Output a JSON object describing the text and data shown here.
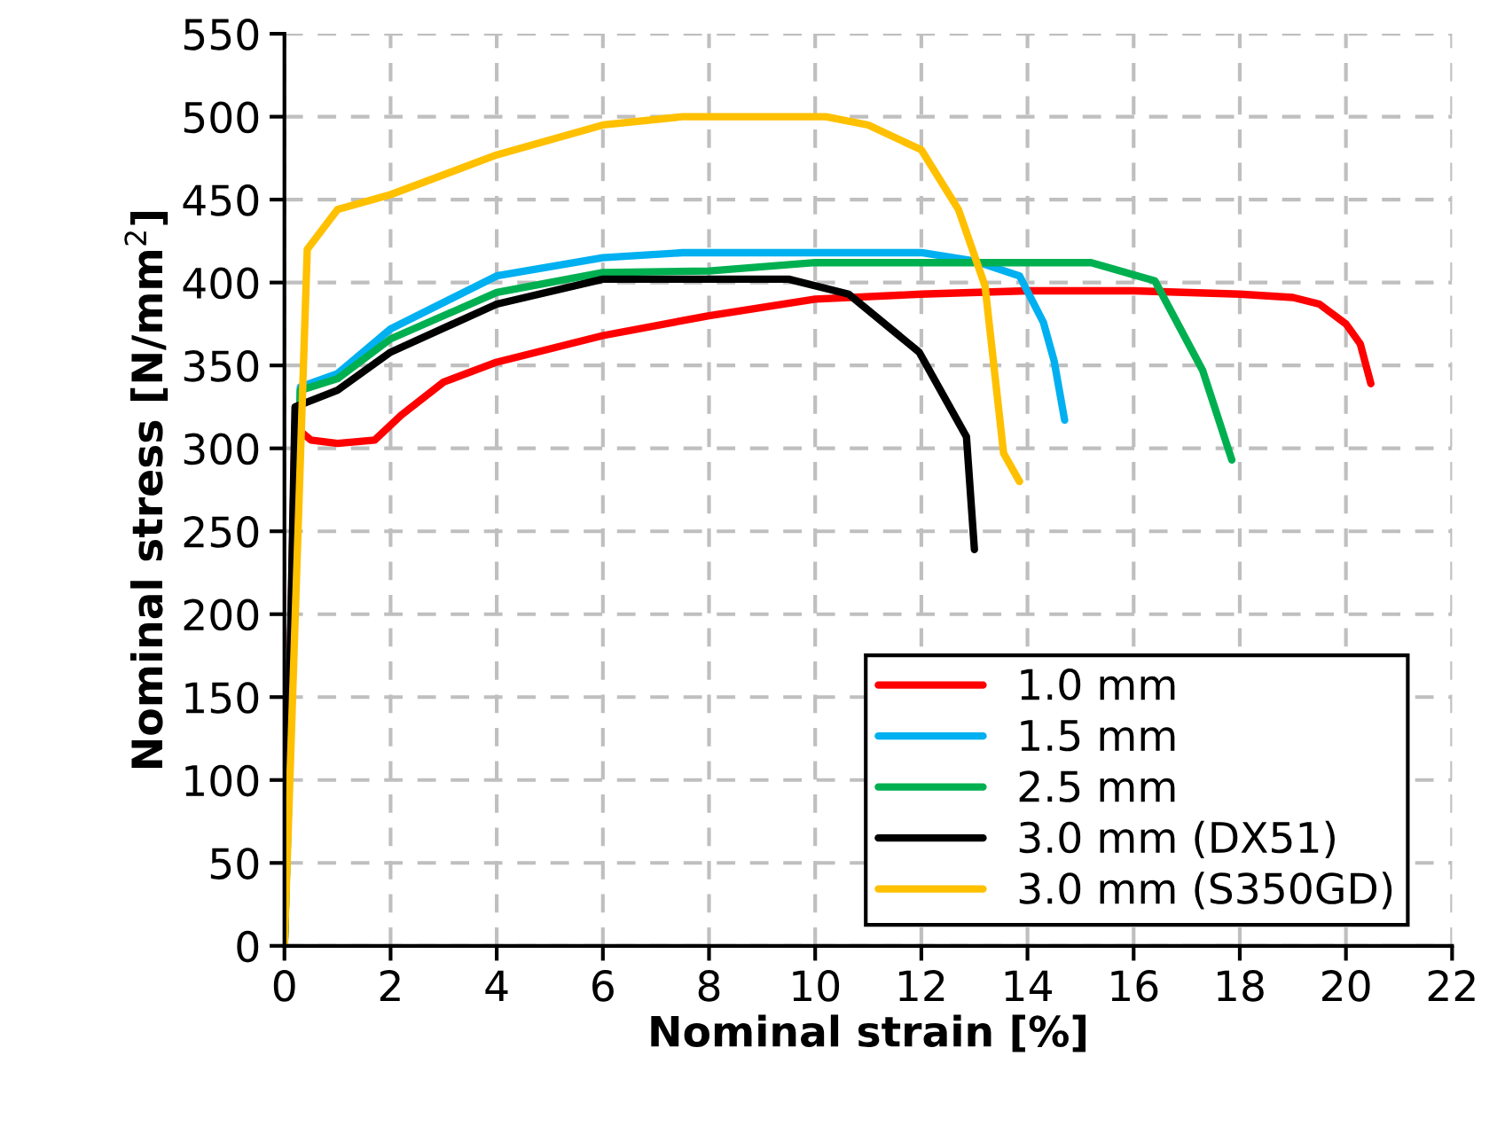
{
  "chart_data": {
    "type": "line",
    "xlabel": "Nominal strain [%]",
    "ylabel": "Nominal stress [N/mm$^{2}$]",
    "xlim": [
      0,
      22
    ],
    "xticks": [
      0,
      2,
      4,
      6,
      8,
      10,
      12,
      14,
      16,
      18,
      20,
      22
    ],
    "ylim": [
      0,
      550
    ],
    "yticks": [
      0,
      50,
      100,
      150,
      200,
      250,
      300,
      350,
      400,
      450,
      500,
      550
    ],
    "grid": true,
    "legend": "bottom right",
    "line_style": "solid",
    "marker": "none",
    "series": [
      {
        "name": "1.0 mm",
        "color": "#ff0000",
        "x": [
          0,
          0.2,
          0.5,
          1.0,
          1.7,
          2.2,
          3,
          4,
          5,
          6,
          8,
          10,
          12,
          14,
          16,
          18,
          19.0,
          19.5,
          20.0,
          20.27,
          20.47
        ],
        "values": [
          0,
          313,
          305,
          303,
          305,
          320,
          340,
          352,
          360,
          368,
          380,
          390,
          393,
          395,
          395,
          393,
          391,
          387,
          375,
          363,
          339
        ]
      },
      {
        "name": "1.5 mm",
        "color": "#00b0f0",
        "x": [
          0,
          0.3,
          1,
          2,
          4,
          6,
          7.5,
          10,
          12,
          13,
          13.85,
          14.3,
          14.5,
          14.7
        ],
        "values": [
          0,
          337,
          345,
          372,
          404,
          415,
          418,
          418,
          418,
          413,
          404,
          376,
          353,
          317
        ]
      },
      {
        "name": "2.5 mm",
        "color": "#00b050",
        "x": [
          0,
          0.3,
          1,
          2,
          4,
          6,
          8,
          10,
          12,
          15.2,
          16.4,
          17.3,
          17.85
        ],
        "values": [
          0,
          335,
          342,
          366,
          394,
          406,
          407,
          412,
          412,
          412,
          401,
          347,
          293
        ]
      },
      {
        "name": "3.0 mm (DX51)",
        "color": "#000000",
        "x": [
          0,
          0.2,
          1,
          2,
          4,
          6,
          8,
          9.5,
          10.63,
          11.96,
          12.85,
          13.0
        ],
        "values": [
          0,
          325,
          335,
          358,
          387,
          402,
          402,
          402,
          393,
          358,
          307,
          239
        ]
      },
      {
        "name": "3.0 mm (S350GD)",
        "color": "#ffc000",
        "x": [
          0,
          0.43,
          1.0,
          2,
          4,
          6,
          7.5,
          10.2,
          11,
          12,
          12.7,
          13.2,
          13.55,
          13.85
        ],
        "values": [
          0,
          420,
          444,
          453,
          477,
          495,
          500,
          500,
          495,
          480,
          444,
          398,
          297,
          280
        ]
      }
    ]
  }
}
